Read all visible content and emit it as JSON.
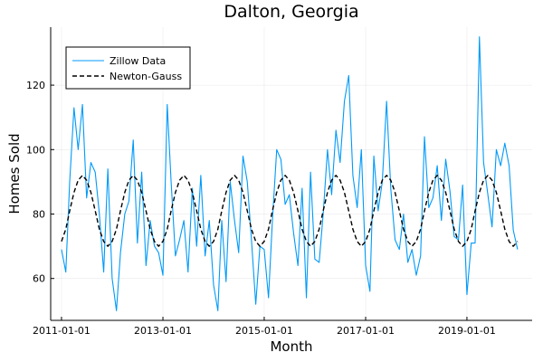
{
  "chart_data": {
    "type": "line",
    "title": "Dalton, Georgia",
    "xlabel": "Month",
    "ylabel": "Homes Sold",
    "x_axis": {
      "kind": "date",
      "range": [
        "2010-10-15",
        "2020-04-15"
      ],
      "ticks": [
        "2011-01-01",
        "2013-01-01",
        "2015-01-01",
        "2017-01-01",
        "2019-01-01"
      ]
    },
    "y_axis": {
      "range": [
        47,
        138
      ],
      "ticks": [
        60,
        80,
        100,
        120
      ]
    },
    "grid": true,
    "legend": {
      "position": "top-left",
      "items": [
        {
          "label": "Zillow Data",
          "color": "#009af9",
          "style": "solid"
        },
        {
          "label": "Newton-Gauss",
          "color": "#000000",
          "style": "dashed"
        }
      ]
    },
    "series": [
      {
        "name": "Zillow Data",
        "color": "#009af9",
        "style": "solid",
        "start": "2011-01",
        "values": [
          69,
          62,
          90,
          113,
          100,
          114,
          85,
          96,
          93,
          80,
          62,
          94,
          60,
          50,
          68,
          80,
          84,
          103,
          71,
          93,
          64,
          78,
          70,
          68,
          61,
          114,
          90,
          67,
          72,
          78,
          62,
          88,
          70,
          92,
          67,
          78,
          58,
          50,
          78,
          59,
          90,
          78,
          68,
          98,
          90,
          72,
          52,
          70,
          69,
          54,
          78,
          100,
          97,
          83,
          86,
          74,
          64,
          88,
          54,
          93,
          66,
          65,
          80,
          100,
          86,
          106,
          96,
          115,
          123,
          92,
          82,
          100,
          64,
          56,
          98,
          81,
          90,
          115,
          88,
          72,
          69,
          80,
          65,
          69,
          61,
          67,
          104,
          82,
          85,
          95,
          78,
          97,
          87,
          73,
          72,
          89,
          55,
          71,
          71,
          135,
          96,
          86,
          76,
          100,
          95,
          102,
          95,
          75,
          69
        ]
      },
      {
        "name": "Newton-Gauss",
        "color": "#000000",
        "style": "dashed",
        "start": "2011-01",
        "model": {
          "form": "a + b*cos(2*pi*(t - c)/12)",
          "a": 81,
          "b": 11,
          "c": 2.5
        },
        "values": [
          71.5,
          75.3,
          81.0,
          86.7,
          90.5,
          92.0,
          90.5,
          86.7,
          81.0,
          75.3,
          71.5,
          70.0,
          71.5,
          75.3,
          81.0,
          86.7,
          90.5,
          92.0,
          90.5,
          86.7,
          81.0,
          75.3,
          71.5,
          70.0,
          71.5,
          75.3,
          81.0,
          86.7,
          90.5,
          92.0,
          90.5,
          86.7,
          81.0,
          75.3,
          71.5,
          70.0,
          71.5,
          75.3,
          81.0,
          86.7,
          90.5,
          92.0,
          90.5,
          86.7,
          81.0,
          75.3,
          71.5,
          70.0,
          71.5,
          75.3,
          81.0,
          86.7,
          90.5,
          92.0,
          90.5,
          86.7,
          81.0,
          75.3,
          71.5,
          70.0,
          71.5,
          75.3,
          81.0,
          86.7,
          90.5,
          92.0,
          90.5,
          86.7,
          81.0,
          75.3,
          71.5,
          70.0,
          71.5,
          75.3,
          81.0,
          86.7,
          90.5,
          92.0,
          90.5,
          86.7,
          81.0,
          75.3,
          71.5,
          70.0,
          71.5,
          75.3,
          81.0,
          86.7,
          90.5,
          92.0,
          90.5,
          86.7,
          81.0,
          75.3,
          71.5,
          70.0,
          71.5,
          75.3,
          81.0,
          86.7,
          90.5,
          92.0,
          90.5,
          86.7,
          81.0,
          75.3,
          71.5,
          70.0,
          71.5
        ]
      }
    ]
  }
}
